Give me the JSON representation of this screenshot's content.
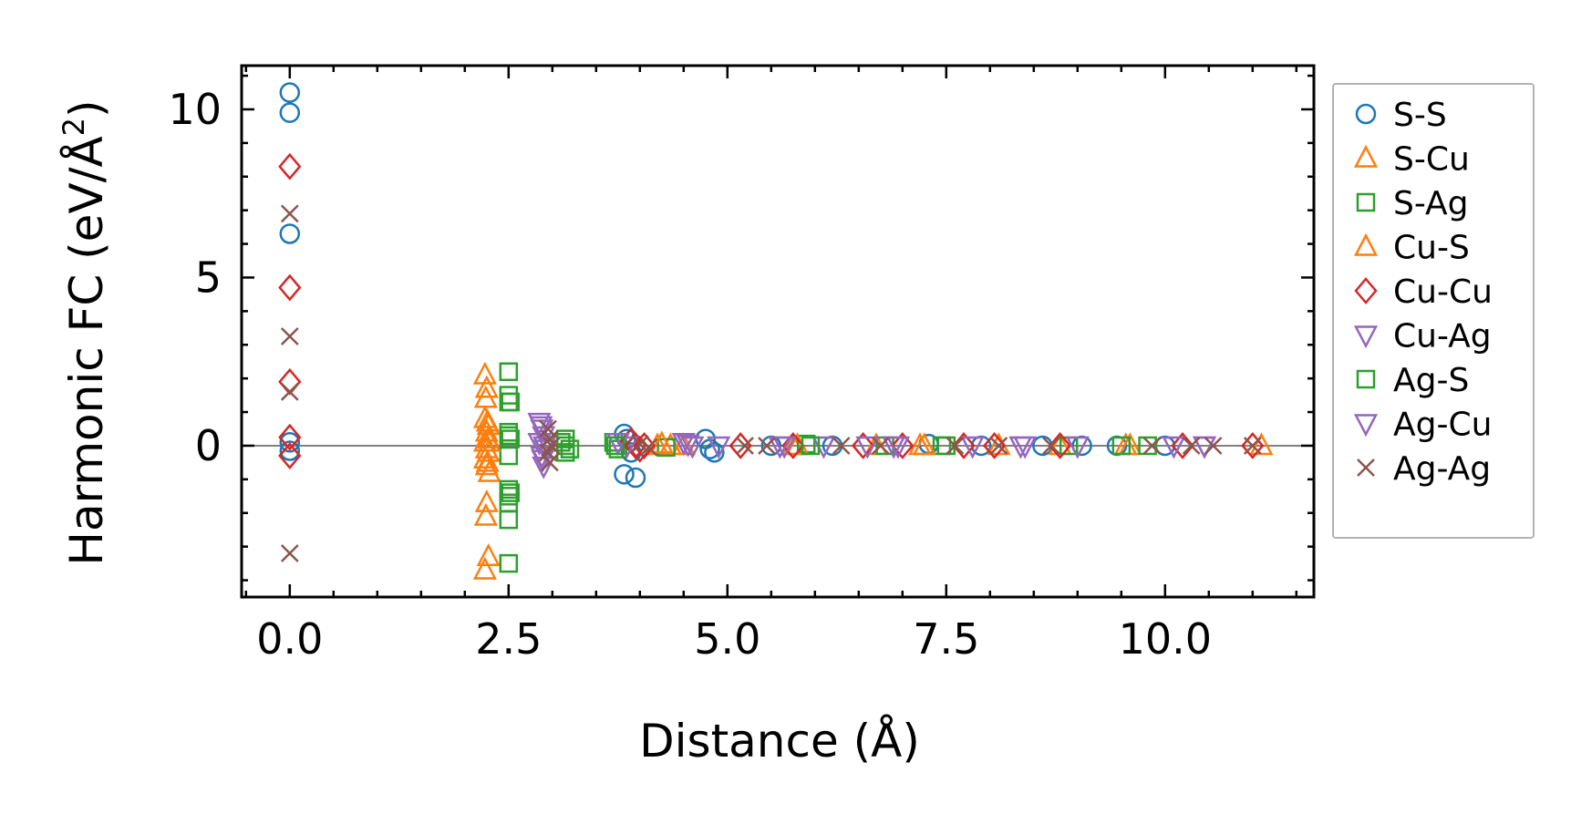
{
  "chart_data": {
    "type": "scatter",
    "title": "",
    "xlabel": "Distance (Å)",
    "ylabel": "Harmonic FC (eV/Å²)",
    "ylabel_main": "Harmonic FC (eV/Å",
    "ylabel_sup": "2",
    "ylabel_close": ")",
    "xlim": [
      -0.55,
      11.7
    ],
    "ylim": [
      -4.5,
      11.3
    ],
    "xticks": [
      0.0,
      2.5,
      5.0,
      7.5,
      10.0
    ],
    "xtick_labels": [
      "0.0",
      "2.5",
      "5.0",
      "7.5",
      "10.0"
    ],
    "yticks": [
      0,
      5,
      10
    ],
    "ytick_labels": [
      "0",
      "5",
      "10"
    ],
    "grid": false,
    "legend_position": "outside-right",
    "reference_line_y": 0,
    "series": [
      {
        "name": "S-S",
        "marker": "circle",
        "color": "#1f77b4",
        "x": [
          0.0,
          0.0,
          0.0,
          0.0,
          0.0,
          3.82,
          3.85,
          3.9,
          3.82,
          3.95,
          4.75,
          4.8,
          4.85,
          5.5,
          6.2,
          7.3,
          7.9,
          8.6,
          9.05,
          9.45,
          10.0
        ],
        "y": [
          10.5,
          9.9,
          6.3,
          0.1,
          -0.15,
          0.35,
          0.2,
          -0.2,
          -0.85,
          -0.95,
          0.2,
          -0.1,
          -0.2,
          0.0,
          0.0,
          0.05,
          0.0,
          0.0,
          0.0,
          0.0,
          0.0
        ]
      },
      {
        "name": "S-Cu",
        "marker": "triangle-up",
        "color": "#ff7f0e",
        "x": [
          2.23,
          2.25,
          2.23,
          2.27,
          2.25,
          2.27,
          2.23,
          2.25,
          2.27,
          2.23,
          2.25,
          2.28,
          2.25,
          2.27,
          2.23,
          4.2,
          4.35,
          4.5,
          5.75,
          6.7,
          7.2,
          8.1,
          8.8,
          9.6,
          11.1
        ],
        "y": [
          2.1,
          1.7,
          0.8,
          0.6,
          0.4,
          0.2,
          0.1,
          -0.1,
          -0.2,
          -0.4,
          -0.6,
          -0.8,
          -1.7,
          -3.3,
          -3.7,
          0.0,
          0.0,
          0.0,
          0.0,
          0.0,
          0.0,
          0.0,
          0.0,
          0.0,
          0.0
        ]
      },
      {
        "name": "S-Ag",
        "marker": "square",
        "color": "#2ca02c",
        "x": [
          2.5,
          2.5,
          2.5,
          2.5,
          2.5,
          2.5,
          2.5,
          2.5,
          2.5,
          2.5,
          2.5,
          3.15,
          3.15,
          3.15,
          3.7,
          3.75,
          4.3,
          5.9,
          6.8,
          7.45,
          8.9,
          9.8
        ],
        "y": [
          2.2,
          1.5,
          1.3,
          0.4,
          0.3,
          -0.3,
          -1.3,
          -1.5,
          -1.7,
          -2.2,
          -3.5,
          0.2,
          0.0,
          -0.2,
          0.1,
          -0.1,
          -0.05,
          0.05,
          0.0,
          0.0,
          0.0,
          0.0
        ]
      },
      {
        "name": "Cu-S",
        "marker": "triangle-up",
        "color": "#ff7f0e",
        "x": [
          2.24,
          2.26,
          2.28,
          2.26,
          2.24,
          4.25,
          5.8,
          7.25,
          9.55
        ],
        "y": [
          1.4,
          0.7,
          0.1,
          -0.5,
          -2.1,
          0.05,
          0.0,
          0.0,
          0.0
        ]
      },
      {
        "name": "Cu-Cu",
        "marker": "diamond",
        "color": "#d62728",
        "x": [
          0.0,
          0.0,
          0.0,
          0.0,
          0.0,
          3.9,
          3.95,
          4.0,
          4.05,
          5.15,
          5.75,
          6.55,
          7.0,
          7.7,
          8.05,
          8.8,
          10.2,
          11.0
        ],
        "y": [
          8.3,
          4.7,
          1.9,
          0.25,
          -0.3,
          0.15,
          0.0,
          -0.1,
          0.0,
          0.0,
          0.0,
          0.0,
          0.0,
          0.0,
          0.0,
          0.0,
          0.0,
          0.0
        ]
      },
      {
        "name": "Cu-Ag",
        "marker": "triangle-down",
        "color": "#9467bd",
        "x": [
          2.85,
          2.88,
          2.9,
          2.85,
          2.92,
          2.88,
          2.9,
          3.75,
          3.85,
          4.5,
          4.6,
          4.9,
          5.6,
          6.1,
          6.6,
          6.9,
          7.8,
          8.4,
          9.0,
          10.1,
          10.45
        ],
        "y": [
          0.7,
          0.5,
          0.3,
          0.1,
          -0.1,
          -0.3,
          -0.6,
          0.1,
          0.0,
          0.1,
          0.0,
          0.0,
          0.0,
          0.0,
          0.0,
          0.0,
          0.0,
          0.0,
          0.0,
          0.0,
          0.0
        ]
      },
      {
        "name": "Ag-S",
        "marker": "square",
        "color": "#2ca02c",
        "x": [
          2.52,
          2.52,
          2.52,
          3.1,
          3.2,
          3.72,
          5.95,
          7.5,
          9.5
        ],
        "y": [
          1.3,
          0.2,
          -1.4,
          0.1,
          -0.1,
          0.0,
          0.0,
          0.0,
          0.0
        ]
      },
      {
        "name": "Ag-Cu",
        "marker": "triangle-down",
        "color": "#9467bd",
        "x": [
          2.87,
          2.91,
          2.89,
          4.55,
          5.65,
          6.95,
          8.35,
          10.45
        ],
        "y": [
          0.6,
          0.0,
          -0.4,
          0.05,
          0.0,
          0.0,
          0.0,
          0.0
        ]
      },
      {
        "name": "Ag-Ag",
        "marker": "x",
        "color": "#8c564b",
        "x": [
          0.0,
          0.0,
          0.0,
          0.0,
          2.95,
          2.97,
          2.99,
          2.95,
          2.97,
          4.0,
          4.1,
          5.2,
          5.45,
          6.3,
          6.75,
          7.6,
          8.1,
          8.7,
          9.85,
          10.3,
          10.55,
          11.0
        ],
        "y": [
          6.9,
          3.25,
          1.6,
          -3.2,
          0.5,
          0.2,
          0.0,
          -0.2,
          -0.5,
          0.05,
          -0.05,
          0.0,
          0.0,
          0.0,
          0.0,
          0.0,
          0.0,
          0.0,
          0.0,
          0.0,
          0.0,
          0.0
        ]
      }
    ]
  }
}
